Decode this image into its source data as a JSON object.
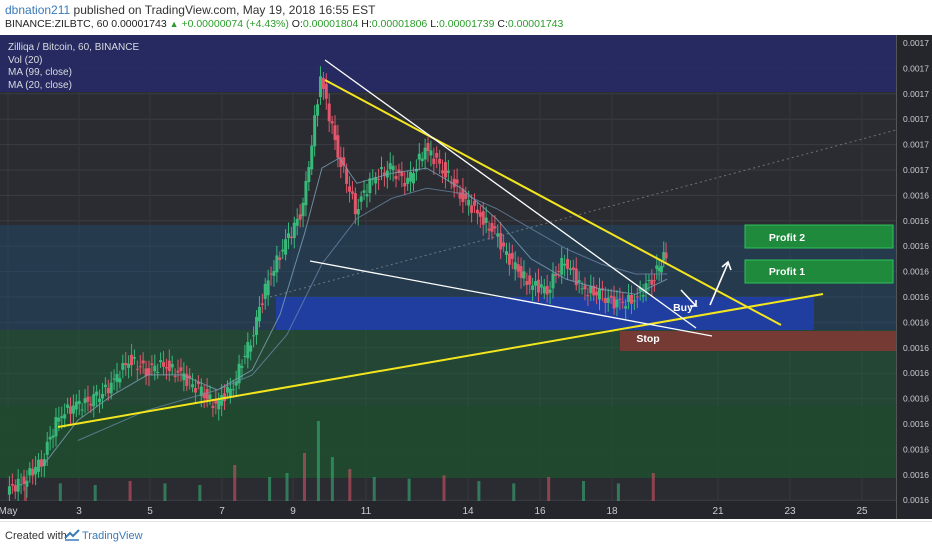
{
  "header": {
    "author": "dbnation211",
    "published_text": "published on TradingView.com, May 19, 2018 16:55 EST",
    "symbol": "BINANCE:ZILBTC, 60",
    "last": "0.00001743",
    "change": "+0.00000074 (+4.43%)",
    "o_label": "O:",
    "o_value": "0.00001804",
    "h_label": "H:",
    "h_value": "0.00001806",
    "l_label": "L:",
    "l_value": "0.00001739",
    "c_label": "C:",
    "c_value": "0.00001743"
  },
  "legend": {
    "title": "Zilliqa / Bitcoin, 60, BINANCE",
    "vol": "Vol (20)",
    "ma99": "MA (99, close)",
    "ma20": "MA (20, close)"
  },
  "annotations": {
    "profit2": "Profit 2",
    "profit1": "Profit 1",
    "buy": "Buy",
    "stop": "Stop"
  },
  "footer": {
    "created_with": "Created with",
    "brand": "TradingView"
  },
  "chart_data": {
    "type": "line",
    "title": "Zilliqa / Bitcoin, 60, BINANCE",
    "xlabel": "",
    "ylabel": "",
    "x_tick_labels": [
      "May",
      "3",
      "5",
      "7",
      "9",
      "11",
      "14",
      "16",
      "18",
      "21",
      "23",
      "25"
    ],
    "y_tick_labels": [
      "0.0017",
      "0.0017",
      "0.0017",
      "0.0017",
      "0.0017",
      "0.0017",
      "0.0016",
      "0.0016",
      "0.0016",
      "0.0016",
      "0.0016",
      "0.0016",
      "0.0016",
      "0.0016",
      "0.0016",
      "0.0016",
      "0.0016",
      "0.0016",
      "0.0016",
      "0.0016"
    ],
    "y_range": [
      1.3,
      2.22
    ],
    "x_range": [
      1.0,
      26.0
    ],
    "price_series": {
      "name": "ZILBTC",
      "x": [
        1.0,
        1.5,
        2.0,
        2.5,
        3.0,
        3.5,
        4.0,
        4.5,
        5.0,
        5.5,
        6.0,
        6.5,
        7.0,
        7.5,
        8.0,
        8.5,
        9.0,
        9.5,
        10.0,
        10.5,
        11.0,
        11.5,
        12.0,
        12.5,
        13.0,
        13.5,
        14.0,
        14.5,
        15.0,
        15.5,
        16.0,
        16.5,
        17.0,
        17.5,
        18.0,
        18.5,
        19.0,
        19.5,
        19.9
      ],
      "y": [
        1.32,
        1.34,
        1.38,
        1.47,
        1.49,
        1.5,
        1.53,
        1.58,
        1.56,
        1.57,
        1.55,
        1.52,
        1.49,
        1.53,
        1.62,
        1.74,
        1.81,
        1.88,
        2.14,
        1.99,
        1.88,
        1.94,
        1.96,
        1.93,
        2.0,
        1.96,
        1.91,
        1.87,
        1.83,
        1.77,
        1.73,
        1.72,
        1.78,
        1.72,
        1.71,
        1.69,
        1.7,
        1.74,
        1.79
      ]
    },
    "ma20": {
      "name": "MA (20, close)",
      "x": [
        2.0,
        3.0,
        4.0,
        5.0,
        6.0,
        7.0,
        8.0,
        8.8,
        9.5,
        10.0,
        10.5,
        11.0,
        12.0,
        13.0,
        14.0,
        15.0,
        16.0,
        17.0,
        18.0,
        19.0,
        19.9
      ],
      "y": [
        1.37,
        1.46,
        1.51,
        1.55,
        1.55,
        1.52,
        1.56,
        1.67,
        1.83,
        1.96,
        1.98,
        1.93,
        1.95,
        1.96,
        1.92,
        1.86,
        1.78,
        1.74,
        1.72,
        1.71,
        1.74
      ]
    },
    "ma99": {
      "name": "MA (99, close)",
      "x": [
        3.0,
        5.0,
        7.0,
        8.0,
        9.0,
        10.0,
        11.0,
        12.0,
        13.0,
        14.0,
        15.0,
        16.0,
        17.0,
        18.0,
        19.0,
        19.9
      ],
      "y": [
        1.42,
        1.48,
        1.52,
        1.55,
        1.63,
        1.77,
        1.86,
        1.9,
        1.92,
        1.91,
        1.88,
        1.84,
        1.8,
        1.77,
        1.75,
        1.75
      ]
    },
    "volume": {
      "name": "Vol (20)",
      "x": [
        1.5,
        2.5,
        3.5,
        4.5,
        5.5,
        6.5,
        7.5,
        8.5,
        9.0,
        9.5,
        9.9,
        10.3,
        10.8,
        11.5,
        12.5,
        13.5,
        14.5,
        15.5,
        16.5,
        17.5,
        18.5,
        19.5
      ],
      "y": [
        0.18,
        0.22,
        0.2,
        0.25,
        0.22,
        0.2,
        0.45,
        0.3,
        0.35,
        0.6,
        1.0,
        0.55,
        0.4,
        0.3,
        0.28,
        0.32,
        0.25,
        0.22,
        0.3,
        0.25,
        0.22,
        0.35
      ]
    },
    "zones": [
      {
        "label": "Profit 2",
        "color": "#1f8a3c"
      },
      {
        "label": "Profit 1",
        "color": "#1f8a3c"
      },
      {
        "label": "Stop",
        "color": "#7a3a34"
      },
      {
        "label": "Buy",
        "color": "#1f3fae"
      }
    ],
    "colors": {
      "background": "#2a2c31",
      "candle_up": "#38b97a",
      "candle_down": "#e2556a",
      "trendline_yellow": "#f4e61e",
      "trendline_white": "#ffffff",
      "ma_line": "#7ea3b8",
      "buy_zone": "#1f3fae",
      "profit_zone": "#1f8a3c",
      "stop_zone": "#7a3a34"
    },
    "grid": true
  }
}
